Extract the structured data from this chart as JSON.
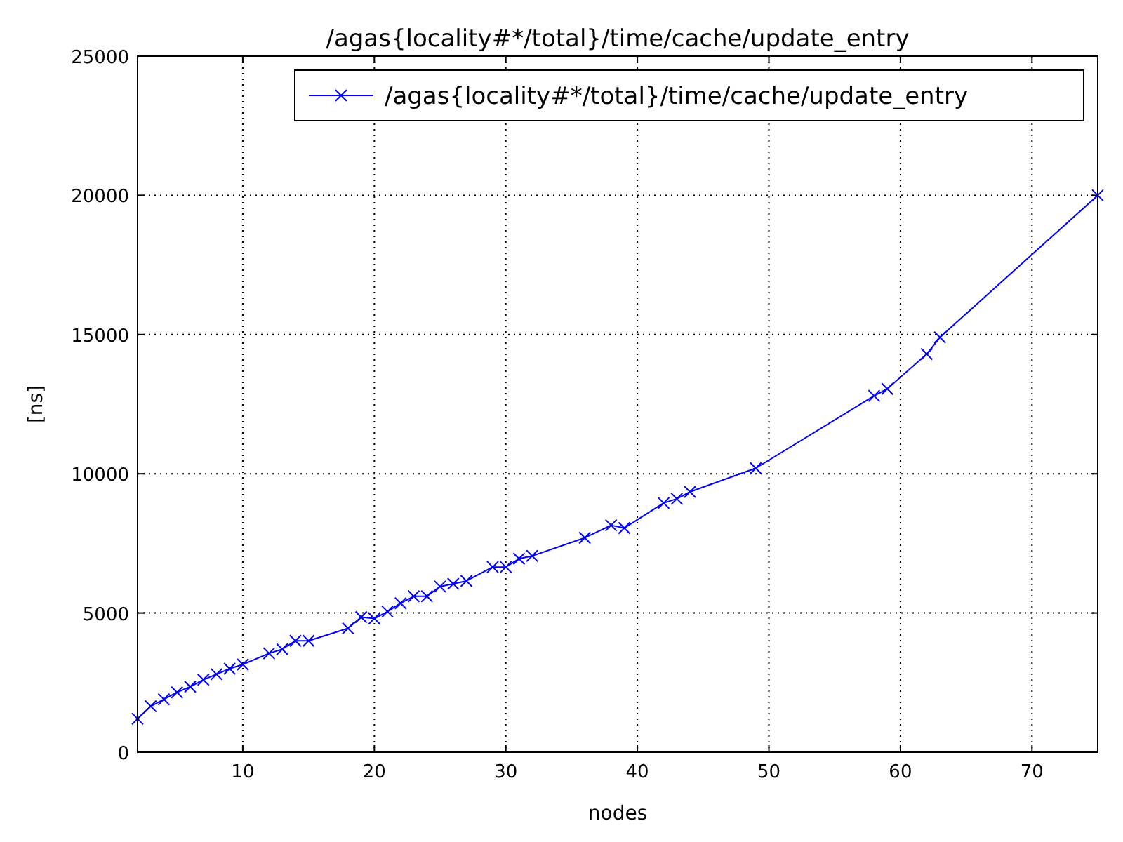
{
  "chart_data": {
    "type": "line",
    "title": "/agas{locality#*/total}/time/cache/update_entry",
    "xlabel": "nodes",
    "ylabel": "[ns]",
    "xlim": [
      2,
      75
    ],
    "xticks": [
      10,
      20,
      30,
      40,
      50,
      60,
      70
    ],
    "ylim": [
      0,
      25000
    ],
    "yticks": [
      0,
      5000,
      10000,
      15000,
      20000,
      25000
    ],
    "grid": true,
    "legend": "top right",
    "marker": "cross",
    "line_style": "solid",
    "series": [
      {
        "name": "/agas{locality#*/total}/time/cache/update_entry",
        "color": "#0000ff",
        "x": [
          2,
          3,
          4,
          5,
          6,
          7,
          8,
          9,
          10,
          12,
          13,
          14,
          15,
          18,
          19,
          20,
          21,
          22,
          23,
          24,
          25,
          26,
          27,
          29,
          30,
          31,
          32,
          36,
          38,
          39,
          42,
          43,
          44,
          49,
          58,
          59,
          62,
          63,
          75
        ],
        "values": [
          1200,
          1650,
          1900,
          2150,
          2350,
          2600,
          2800,
          3000,
          3150,
          3550,
          3700,
          4000,
          4000,
          4450,
          4850,
          4800,
          5050,
          5350,
          5600,
          5600,
          5950,
          6050,
          6150,
          6650,
          6650,
          6950,
          7050,
          7700,
          8150,
          8050,
          8950,
          9100,
          9350,
          10200,
          12800,
          13050,
          14300,
          14900,
          20000
        ]
      }
    ]
  }
}
